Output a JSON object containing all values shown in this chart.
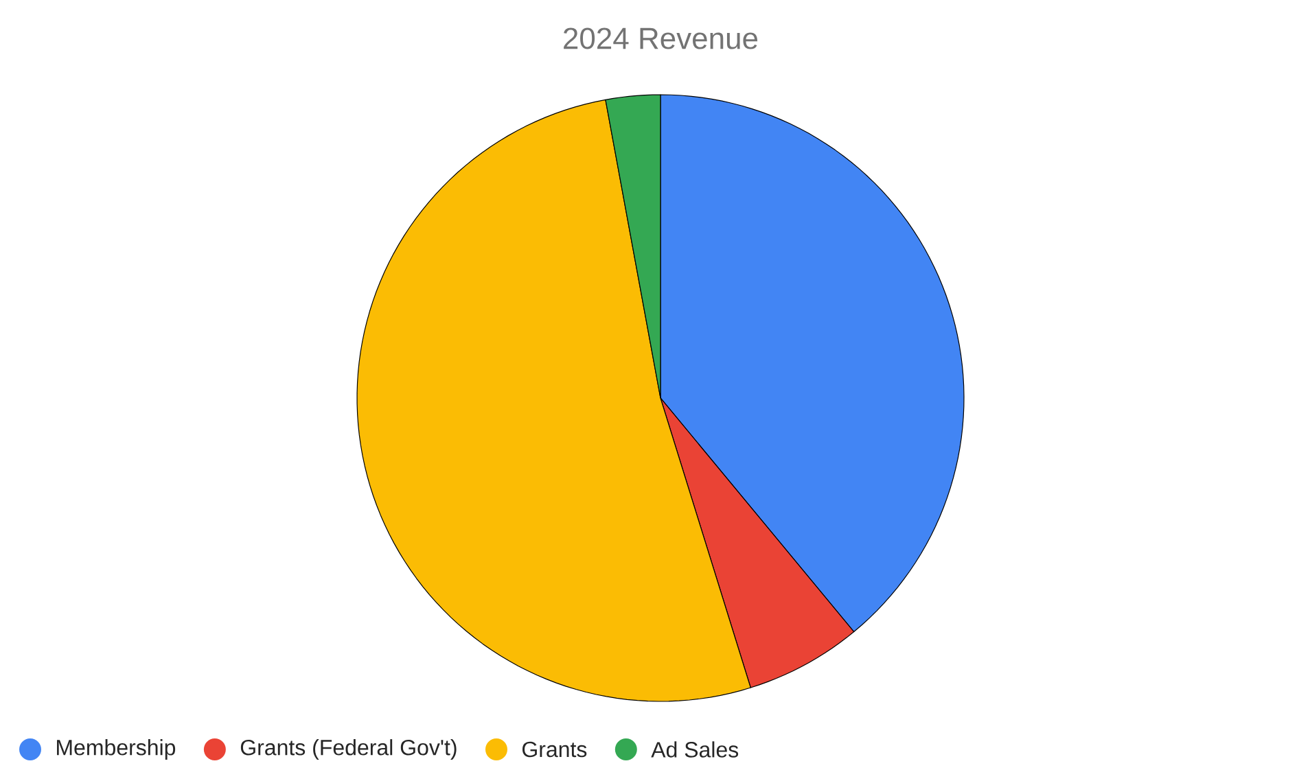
{
  "chart_data": {
    "type": "pie",
    "title": "2024 Revenue",
    "categories": [
      "Membership",
      "Grants (Federal Gov't)",
      "Grants",
      "Ad Sales"
    ],
    "values": [
      39,
      6.2,
      51.9,
      2.9
    ],
    "colors": [
      "#4285f4",
      "#ea4335",
      "#fbbc04",
      "#34a853"
    ],
    "legend": "bottom"
  }
}
